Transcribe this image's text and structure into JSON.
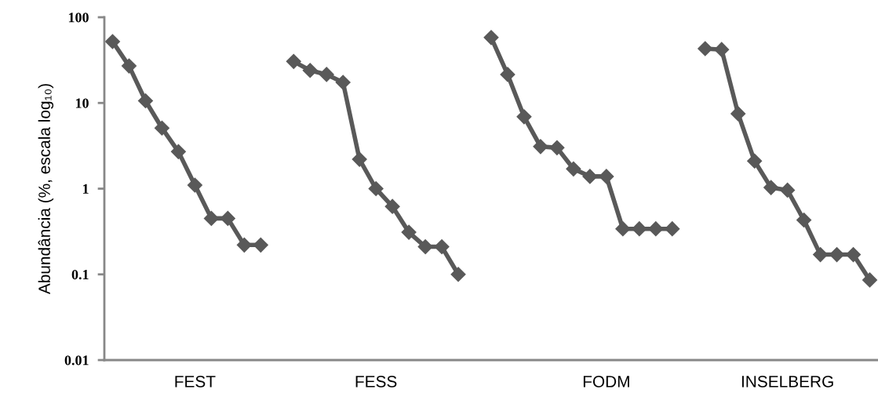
{
  "chart_data": {
    "type": "line",
    "ylabel": "Abundância (%, escala log₁₀)",
    "categories": [
      null,
      null,
      null,
      null,
      null,
      "FEST",
      null,
      null,
      null,
      null,
      null,
      null,
      null,
      null,
      null,
      null,
      "FESS",
      null,
      null,
      null,
      null,
      null,
      null,
      null,
      null,
      null,
      null,
      null,
      null,
      null,
      "FODM",
      null,
      null,
      null,
      null,
      null,
      null,
      null,
      null,
      null,
      null,
      "INSELBERG",
      null,
      null,
      null,
      null,
      null
    ],
    "series": [
      {
        "color": "#595959",
        "values": [
          52,
          27,
          10.6,
          5.1,
          2.7,
          1.1,
          0.45,
          0.45,
          0.22,
          0.22,
          null,
          null,
          null,
          null,
          null,
          null,
          null,
          null,
          null,
          null,
          null,
          null,
          null,
          null,
          null,
          null,
          null,
          null,
          null,
          null,
          null,
          null,
          null,
          null,
          null,
          null,
          null,
          null,
          null,
          null,
          null,
          null,
          null,
          null,
          null,
          null,
          null
        ]
      },
      {
        "color": "#595959",
        "values": [
          null,
          null,
          null,
          null,
          null,
          null,
          null,
          null,
          null,
          null,
          null,
          30.5,
          24,
          21.5,
          17.4,
          2.2,
          1.0,
          0.62,
          0.31,
          0.21,
          0.21,
          0.1,
          null,
          null,
          null,
          null,
          null,
          null,
          null,
          null,
          null,
          null,
          null,
          null,
          null,
          null,
          null,
          null,
          null,
          null,
          null,
          null,
          null,
          null,
          null,
          null,
          null
        ]
      },
      {
        "color": "#595959",
        "values": [
          null,
          null,
          null,
          null,
          null,
          null,
          null,
          null,
          null,
          null,
          null,
          null,
          null,
          null,
          null,
          null,
          null,
          null,
          null,
          null,
          null,
          null,
          null,
          58,
          21.5,
          6.9,
          3.1,
          3.0,
          1.7,
          1.39,
          1.39,
          0.34,
          0.34,
          0.34,
          0.34,
          null,
          null,
          null,
          null,
          null,
          null,
          null,
          null,
          null,
          null,
          null,
          null
        ]
      },
      {
        "color": "#595959",
        "values": [
          null,
          null,
          null,
          null,
          null,
          null,
          null,
          null,
          null,
          null,
          null,
          null,
          null,
          null,
          null,
          null,
          null,
          null,
          null,
          null,
          null,
          null,
          null,
          null,
          null,
          null,
          null,
          null,
          null,
          null,
          null,
          null,
          null,
          null,
          null,
          null,
          43,
          42,
          7.5,
          2.1,
          1.03,
          0.96,
          0.43,
          0.17,
          0.17,
          0.17,
          0.086
        ]
      }
    ],
    "log": "y",
    "ylim": [
      0.01,
      100
    ],
    "yticks": [
      0.01,
      0.1,
      1,
      10,
      100
    ],
    "marker": "diamond",
    "line_style": "solid",
    "grid": false,
    "legend": false
  }
}
